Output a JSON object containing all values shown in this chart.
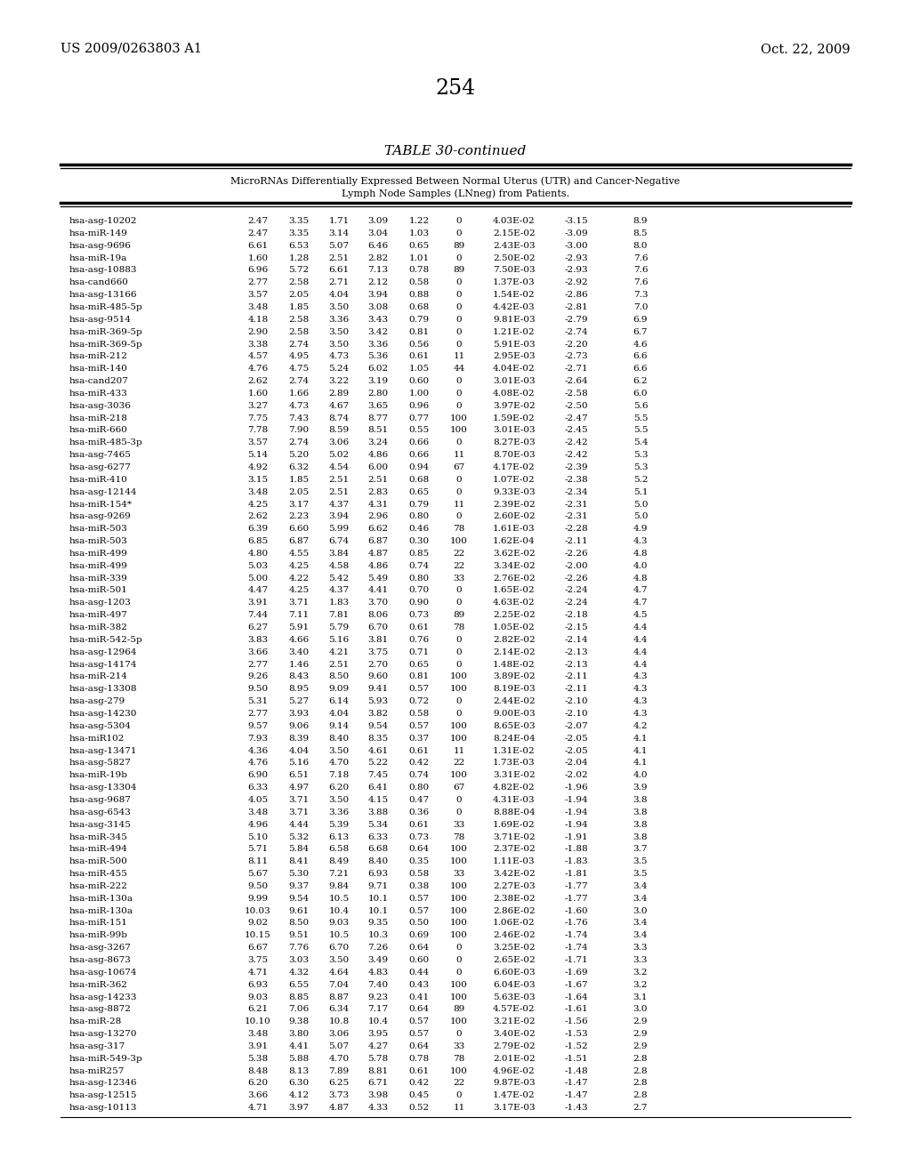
{
  "page_left": "US 2009/0263803 A1",
  "page_right": "Oct. 22, 2009",
  "page_number": "254",
  "table_title": "TABLE 30-continued",
  "table_subtitle_line1": "MicroRNAs Differentially Expressed Between Normal Uterus (UTR) and Cancer-Negative",
  "table_subtitle_line2": "Lymph Node Samples (LNneg) from Patients.",
  "rows": [
    [
      "hsa-asg-10202",
      "2.47",
      "3.35",
      "1.71",
      "3.09",
      "1.22",
      "0",
      "4.03E-02",
      "-3.15",
      "8.9"
    ],
    [
      "hsa-miR-149",
      "2.47",
      "3.35",
      "3.14",
      "3.04",
      "1.03",
      "0",
      "2.15E-02",
      "-3.09",
      "8.5"
    ],
    [
      "hsa-asg-9696",
      "6.61",
      "6.53",
      "5.07",
      "6.46",
      "0.65",
      "89",
      "2.43E-03",
      "-3.00",
      "8.0"
    ],
    [
      "hsa-miR-19a",
      "1.60",
      "1.28",
      "2.51",
      "2.82",
      "1.01",
      "0",
      "2.50E-02",
      "-2.93",
      "7.6"
    ],
    [
      "hsa-asg-10883",
      "6.96",
      "5.72",
      "6.61",
      "7.13",
      "0.78",
      "89",
      "7.50E-03",
      "-2.93",
      "7.6"
    ],
    [
      "hsa-cand660",
      "2.77",
      "2.58",
      "2.71",
      "2.12",
      "0.58",
      "0",
      "1.37E-03",
      "-2.92",
      "7.6"
    ],
    [
      "hsa-asg-13166",
      "3.57",
      "2.05",
      "4.04",
      "3.94",
      "0.88",
      "0",
      "1.54E-02",
      "-2.86",
      "7.3"
    ],
    [
      "hsa-miR-485-5p",
      "3.48",
      "1.85",
      "3.50",
      "3.08",
      "0.68",
      "0",
      "4.42E-03",
      "-2.81",
      "7.0"
    ],
    [
      "hsa-asg-9514",
      "4.18",
      "2.58",
      "3.36",
      "3.43",
      "0.79",
      "0",
      "9.81E-03",
      "-2.79",
      "6.9"
    ],
    [
      "hsa-miR-369-5p",
      "2.90",
      "2.58",
      "3.50",
      "3.42",
      "0.81",
      "0",
      "1.21E-02",
      "-2.74",
      "6.7"
    ],
    [
      "hsa-miR-369-5p",
      "3.38",
      "2.74",
      "3.50",
      "3.36",
      "0.56",
      "0",
      "5.91E-03",
      "-2.20",
      "4.6"
    ],
    [
      "hsa-miR-212",
      "4.57",
      "4.95",
      "4.73",
      "5.36",
      "0.61",
      "11",
      "2.95E-03",
      "-2.73",
      "6.6"
    ],
    [
      "hsa-miR-140",
      "4.76",
      "4.75",
      "5.24",
      "6.02",
      "1.05",
      "44",
      "4.04E-02",
      "-2.71",
      "6.6"
    ],
    [
      "hsa-cand207",
      "2.62",
      "2.74",
      "3.22",
      "3.19",
      "0.60",
      "0",
      "3.01E-03",
      "-2.64",
      "6.2"
    ],
    [
      "hsa-miR-433",
      "1.60",
      "1.66",
      "2.89",
      "2.80",
      "1.00",
      "0",
      "4.08E-02",
      "-2.58",
      "6.0"
    ],
    [
      "hsa-asg-3036",
      "3.27",
      "4.73",
      "4.67",
      "3.65",
      "0.96",
      "0",
      "3.97E-02",
      "-2.50",
      "5.6"
    ],
    [
      "hsa-miR-218",
      "7.75",
      "7.43",
      "8.74",
      "8.77",
      "0.77",
      "100",
      "1.59E-02",
      "-2.47",
      "5.5"
    ],
    [
      "hsa-miR-660",
      "7.78",
      "7.90",
      "8.59",
      "8.51",
      "0.55",
      "100",
      "3.01E-03",
      "-2.45",
      "5.5"
    ],
    [
      "hsa-miR-485-3p",
      "3.57",
      "2.74",
      "3.06",
      "3.24",
      "0.66",
      "0",
      "8.27E-03",
      "-2.42",
      "5.4"
    ],
    [
      "hsa-asg-7465",
      "5.14",
      "5.20",
      "5.02",
      "4.86",
      "0.66",
      "11",
      "8.70E-03",
      "-2.42",
      "5.3"
    ],
    [
      "hsa-asg-6277",
      "4.92",
      "6.32",
      "4.54",
      "6.00",
      "0.94",
      "67",
      "4.17E-02",
      "-2.39",
      "5.3"
    ],
    [
      "hsa-miR-410",
      "3.15",
      "1.85",
      "2.51",
      "2.51",
      "0.68",
      "0",
      "1.07E-02",
      "-2.38",
      "5.2"
    ],
    [
      "hsa-asg-12144",
      "3.48",
      "2.05",
      "2.51",
      "2.83",
      "0.65",
      "0",
      "9.33E-03",
      "-2.34",
      "5.1"
    ],
    [
      "hsa-miR-154*",
      "4.25",
      "3.17",
      "4.37",
      "4.31",
      "0.79",
      "11",
      "2.39E-02",
      "-2.31",
      "5.0"
    ],
    [
      "hsa-asg-9269",
      "2.62",
      "2.23",
      "3.94",
      "2.96",
      "0.80",
      "0",
      "2.60E-02",
      "-2.31",
      "5.0"
    ],
    [
      "hsa-miR-503",
      "6.39",
      "6.60",
      "5.99",
      "6.62",
      "0.46",
      "78",
      "1.61E-03",
      "-2.28",
      "4.9"
    ],
    [
      "hsa-miR-503",
      "6.85",
      "6.87",
      "6.74",
      "6.87",
      "0.30",
      "100",
      "1.62E-04",
      "-2.11",
      "4.3"
    ],
    [
      "hsa-miR-499",
      "4.80",
      "4.55",
      "3.84",
      "4.87",
      "0.85",
      "22",
      "3.62E-02",
      "-2.26",
      "4.8"
    ],
    [
      "hsa-miR-499",
      "5.03",
      "4.25",
      "4.58",
      "4.86",
      "0.74",
      "22",
      "3.34E-02",
      "-2.00",
      "4.0"
    ],
    [
      "hsa-miR-339",
      "5.00",
      "4.22",
      "5.42",
      "5.49",
      "0.80",
      "33",
      "2.76E-02",
      "-2.26",
      "4.8"
    ],
    [
      "hsa-miR-501",
      "4.47",
      "4.25",
      "4.37",
      "4.41",
      "0.70",
      "0",
      "1.65E-02",
      "-2.24",
      "4.7"
    ],
    [
      "hsa-asg-1203",
      "3.91",
      "3.71",
      "1.83",
      "3.70",
      "0.90",
      "0",
      "4.63E-02",
      "-2.24",
      "4.7"
    ],
    [
      "hsa-miR-497",
      "7.44",
      "7.11",
      "7.81",
      "8.06",
      "0.73",
      "89",
      "2.25E-02",
      "-2.18",
      "4.5"
    ],
    [
      "hsa-miR-382",
      "6.27",
      "5.91",
      "5.79",
      "6.70",
      "0.61",
      "78",
      "1.05E-02",
      "-2.15",
      "4.4"
    ],
    [
      "hsa-miR-542-5p",
      "3.83",
      "4.66",
      "5.16",
      "3.81",
      "0.76",
      "0",
      "2.82E-02",
      "-2.14",
      "4.4"
    ],
    [
      "hsa-asg-12964",
      "3.66",
      "3.40",
      "4.21",
      "3.75",
      "0.71",
      "0",
      "2.14E-02",
      "-2.13",
      "4.4"
    ],
    [
      "hsa-asg-14174",
      "2.77",
      "1.46",
      "2.51",
      "2.70",
      "0.65",
      "0",
      "1.48E-02",
      "-2.13",
      "4.4"
    ],
    [
      "hsa-miR-214",
      "9.26",
      "8.43",
      "8.50",
      "9.60",
      "0.81",
      "100",
      "3.89E-02",
      "-2.11",
      "4.3"
    ],
    [
      "hsa-asg-13308",
      "9.50",
      "8.95",
      "9.09",
      "9.41",
      "0.57",
      "100",
      "8.19E-03",
      "-2.11",
      "4.3"
    ],
    [
      "hsa-asg-279",
      "5.31",
      "5.27",
      "6.14",
      "5.93",
      "0.72",
      "0",
      "2.44E-02",
      "-2.10",
      "4.3"
    ],
    [
      "hsa-asg-14230",
      "2.77",
      "3.93",
      "4.04",
      "3.82",
      "0.58",
      "0",
      "9.00E-03",
      "-2.10",
      "4.3"
    ],
    [
      "hsa-asg-5304",
      "9.57",
      "9.06",
      "9.14",
      "9.54",
      "0.57",
      "100",
      "8.65E-03",
      "-2.07",
      "4.2"
    ],
    [
      "hsa-miR102",
      "7.93",
      "8.39",
      "8.40",
      "8.35",
      "0.37",
      "100",
      "8.24E-04",
      "-2.05",
      "4.1"
    ],
    [
      "hsa-asg-13471",
      "4.36",
      "4.04",
      "3.50",
      "4.61",
      "0.61",
      "11",
      "1.31E-02",
      "-2.05",
      "4.1"
    ],
    [
      "hsa-asg-5827",
      "4.76",
      "5.16",
      "4.70",
      "5.22",
      "0.42",
      "22",
      "1.73E-03",
      "-2.04",
      "4.1"
    ],
    [
      "hsa-miR-19b",
      "6.90",
      "6.51",
      "7.18",
      "7.45",
      "0.74",
      "100",
      "3.31E-02",
      "-2.02",
      "4.0"
    ],
    [
      "hsa-asg-13304",
      "6.33",
      "4.97",
      "6.20",
      "6.41",
      "0.80",
      "67",
      "4.82E-02",
      "-1.96",
      "3.9"
    ],
    [
      "hsa-asg-9687",
      "4.05",
      "3.71",
      "3.50",
      "4.15",
      "0.47",
      "0",
      "4.31E-03",
      "-1.94",
      "3.8"
    ],
    [
      "hsa-asg-6543",
      "3.48",
      "3.71",
      "3.36",
      "3.88",
      "0.36",
      "0",
      "8.88E-04",
      "-1.94",
      "3.8"
    ],
    [
      "hsa-asg-3145",
      "4.96",
      "4.44",
      "5.39",
      "5.34",
      "0.61",
      "33",
      "1.69E-02",
      "-1.94",
      "3.8"
    ],
    [
      "hsa-miR-345",
      "5.10",
      "5.32",
      "6.13",
      "6.33",
      "0.73",
      "78",
      "3.71E-02",
      "-1.91",
      "3.8"
    ],
    [
      "hsa-miR-494",
      "5.71",
      "5.84",
      "6.58",
      "6.68",
      "0.64",
      "100",
      "2.37E-02",
      "-1.88",
      "3.7"
    ],
    [
      "hsa-miR-500",
      "8.11",
      "8.41",
      "8.49",
      "8.40",
      "0.35",
      "100",
      "1.11E-03",
      "-1.83",
      "3.5"
    ],
    [
      "hsa-miR-455",
      "5.67",
      "5.30",
      "7.21",
      "6.93",
      "0.58",
      "33",
      "3.42E-02",
      "-1.81",
      "3.5"
    ],
    [
      "hsa-miR-222",
      "9.50",
      "9.37",
      "9.84",
      "9.71",
      "0.38",
      "100",
      "2.27E-03",
      "-1.77",
      "3.4"
    ],
    [
      "hsa-miR-130a",
      "9.99",
      "9.54",
      "10.5",
      "10.1",
      "0.57",
      "100",
      "2.38E-02",
      "-1.77",
      "3.4"
    ],
    [
      "hsa-miR-130a",
      "10.03",
      "9.61",
      "10.4",
      "10.1",
      "0.57",
      "100",
      "2.86E-02",
      "-1.60",
      "3.0"
    ],
    [
      "hsa-miR-151",
      "9.02",
      "8.50",
      "9.03",
      "9.35",
      "0.50",
      "100",
      "1.06E-02",
      "-1.76",
      "3.4"
    ],
    [
      "hsa-miR-99b",
      "10.15",
      "9.51",
      "10.5",
      "10.3",
      "0.69",
      "100",
      "2.46E-02",
      "-1.74",
      "3.4"
    ],
    [
      "hsa-asg-3267",
      "6.67",
      "7.76",
      "6.70",
      "7.26",
      "0.64",
      "0",
      "3.25E-02",
      "-1.74",
      "3.3"
    ],
    [
      "hsa-asg-8673",
      "3.75",
      "3.03",
      "3.50",
      "3.49",
      "0.60",
      "0",
      "2.65E-02",
      "-1.71",
      "3.3"
    ],
    [
      "hsa-asg-10674",
      "4.71",
      "4.32",
      "4.64",
      "4.83",
      "0.44",
      "0",
      "6.60E-03",
      "-1.69",
      "3.2"
    ],
    [
      "hsa-miR-362",
      "6.93",
      "6.55",
      "7.04",
      "7.40",
      "0.43",
      "100",
      "6.04E-03",
      "-1.67",
      "3.2"
    ],
    [
      "hsa-asg-14233",
      "9.03",
      "8.85",
      "8.87",
      "9.23",
      "0.41",
      "100",
      "5.63E-03",
      "-1.64",
      "3.1"
    ],
    [
      "hsa-asg-8872",
      "6.21",
      "7.06",
      "6.34",
      "7.17",
      "0.64",
      "89",
      "4.57E-02",
      "-1.61",
      "3.0"
    ],
    [
      "hsa-miR-28",
      "10.10",
      "9.38",
      "10.8",
      "10.4",
      "0.57",
      "100",
      "3.21E-02",
      "-1.56",
      "2.9"
    ],
    [
      "hsa-asg-13270",
      "3.48",
      "3.80",
      "3.06",
      "3.95",
      "0.57",
      "0",
      "3.40E-02",
      "-1.53",
      "2.9"
    ],
    [
      "hsa-asg-317",
      "3.91",
      "4.41",
      "5.07",
      "4.27",
      "0.64",
      "33",
      "2.79E-02",
      "-1.52",
      "2.9"
    ],
    [
      "hsa-miR-549-3p",
      "5.38",
      "5.88",
      "4.70",
      "5.78",
      "0.78",
      "78",
      "2.01E-02",
      "-1.51",
      "2.8"
    ],
    [
      "hsa-miR257",
      "8.48",
      "8.13",
      "7.89",
      "8.81",
      "0.61",
      "100",
      "4.96E-02",
      "-1.48",
      "2.8"
    ],
    [
      "hsa-asg-12346",
      "6.20",
      "6.30",
      "6.25",
      "6.71",
      "0.42",
      "22",
      "9.87E-03",
      "-1.47",
      "2.8"
    ],
    [
      "hsa-asg-12515",
      "3.66",
      "4.12",
      "3.73",
      "3.98",
      "0.45",
      "0",
      "1.47E-02",
      "-1.47",
      "2.8"
    ],
    [
      "hsa-asg-10113",
      "4.71",
      "3.97",
      "4.87",
      "4.33",
      "0.52",
      "11",
      "3.17E-03",
      "-1.43",
      "2.7"
    ]
  ]
}
